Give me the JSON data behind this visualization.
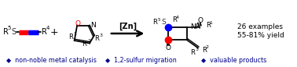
{
  "bg_color": "#ffffff",
  "blue_color": "#0000ff",
  "red_color": "#ff0000",
  "dark_navy": "#00008B",
  "bullet_color": "#00008B",
  "footer_items": [
    "◆  non-noble metal catalysis",
    "◆  1,2-sulfur migration",
    "◆  valuable products"
  ],
  "examples_text": "26 examples",
  "yield_text": "55-81% yield",
  "catalyst_label": "[Zn]",
  "figsize": [
    3.78,
    0.86
  ],
  "dpi": 100
}
